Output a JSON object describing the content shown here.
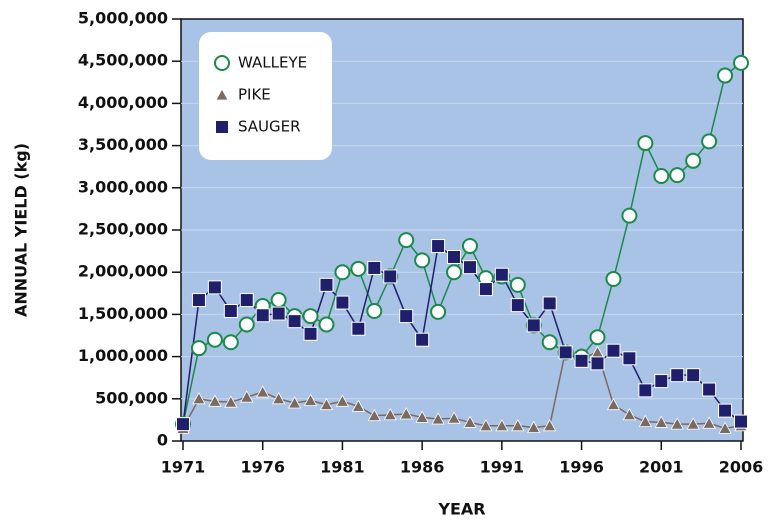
{
  "chart_data": {
    "type": "line",
    "ylabel": "ANNUAL YIELD (kg)",
    "xlabel": "YEAR",
    "x": [
      1971,
      1972,
      1973,
      1974,
      1975,
      1976,
      1977,
      1978,
      1979,
      1980,
      1981,
      1982,
      1983,
      1984,
      1985,
      1986,
      1987,
      1988,
      1989,
      1990,
      1991,
      1992,
      1993,
      1994,
      1995,
      1996,
      1997,
      1998,
      1999,
      2000,
      2001,
      2002,
      2003,
      2004,
      2005,
      2006
    ],
    "series": [
      {
        "name": "WALLEYE",
        "color": "#1a8a4a",
        "marker": "circle",
        "values": [
          200000,
          1100000,
          1200000,
          1170000,
          1380000,
          1600000,
          1670000,
          1480000,
          1480000,
          1380000,
          2000000,
          2040000,
          1540000,
          1950000,
          2380000,
          2140000,
          1530000,
          2000000,
          2310000,
          1930000,
          1950000,
          1850000,
          1370000,
          1170000,
          1050000,
          1000000,
          1230000,
          1920000,
          2670000,
          3530000,
          3140000,
          3150000,
          3320000,
          3550000,
          4330000,
          4480000
        ]
      },
      {
        "name": "PIKE",
        "color": "#7a6a60",
        "marker": "triangle",
        "values": [
          150000,
          500000,
          470000,
          460000,
          520000,
          580000,
          500000,
          450000,
          480000,
          430000,
          470000,
          410000,
          300000,
          310000,
          320000,
          280000,
          260000,
          270000,
          220000,
          180000,
          180000,
          180000,
          160000,
          180000,
          1070000,
          980000,
          1050000,
          430000,
          310000,
          230000,
          220000,
          200000,
          200000,
          210000,
          150000,
          180000
        ]
      },
      {
        "name": "SAUGER",
        "color": "#1f1f6b",
        "marker": "square",
        "values": [
          200000,
          1670000,
          1820000,
          1540000,
          1670000,
          1490000,
          1510000,
          1420000,
          1270000,
          1850000,
          1640000,
          1330000,
          2050000,
          1950000,
          1480000,
          1200000,
          2310000,
          2180000,
          2060000,
          1800000,
          1970000,
          1610000,
          1370000,
          1630000,
          1050000,
          950000,
          920000,
          1070000,
          980000,
          600000,
          710000,
          780000,
          780000,
          610000,
          360000,
          230000
        ]
      }
    ],
    "xlim": [
      1971,
      2006
    ],
    "xticks": [
      1971,
      1976,
      1981,
      1986,
      1991,
      1996,
      2001,
      2006
    ],
    "ylim": [
      0,
      5000000
    ],
    "yticks": [
      0,
      {
        "value": 500000,
        "label": "500,000"
      },
      {
        "value": 1000000,
        "label": "1,000,000"
      },
      {
        "value": 1500000,
        "label": "1,500,000"
      },
      {
        "value": 2000000,
        "label": "2,000,000"
      },
      {
        "value": 2500000,
        "label": "2,500,000"
      },
      {
        "value": 3000000,
        "label": "3,000,000"
      },
      {
        "value": 3500000,
        "label": "3,500,000"
      },
      {
        "value": 4000000,
        "label": "4,000,000"
      },
      {
        "value": 4500000,
        "label": "4,500,000"
      },
      {
        "value": 5000000,
        "label": "5,000,000"
      }
    ],
    "grid": true,
    "legend": "upper left"
  }
}
